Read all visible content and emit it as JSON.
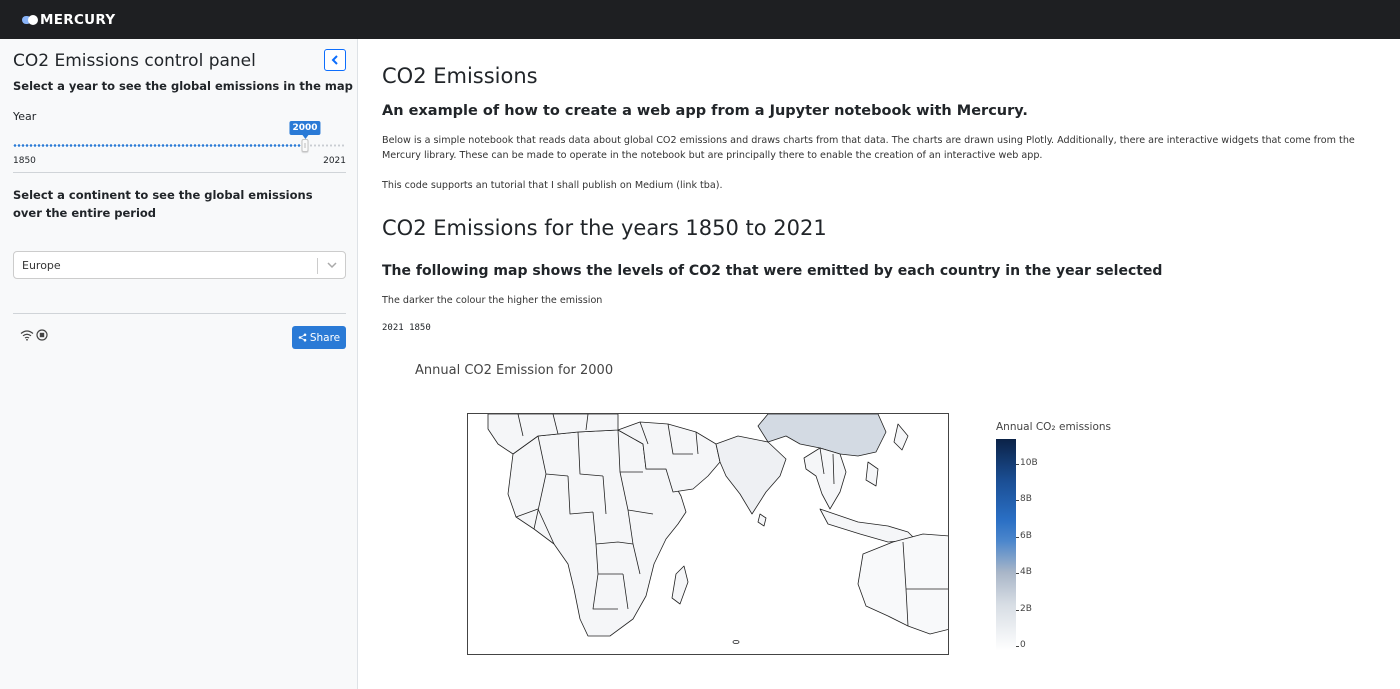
{
  "app": {
    "name": "MERCURY"
  },
  "sidebar": {
    "title": "CO2 Emissions control panel",
    "collapse_icon": "chevron-left-icon",
    "year_help": "Select a year to see the global emissions in the map",
    "year_label": "Year",
    "slider": {
      "min": 1850,
      "max": 2021,
      "value": 2000,
      "min_label": "1850",
      "max_label": "2021",
      "value_label": "2000",
      "accent": "#2a7ad6"
    },
    "continent_help": "Select a continent to see the global emissions over the entire period",
    "continent_select": {
      "value": "Europe"
    },
    "footer": {
      "wifi_icon": "wifi-icon",
      "stop_icon": "stop-icon",
      "share_label": "Share",
      "share_icon": "share-icon"
    }
  },
  "main": {
    "heading1": "CO2 Emissions",
    "subheading1": "An example of how to create a web app from a Jupyter notebook with Mercury.",
    "paragraph1": "Below is a simple notebook that reads data about global CO2 emissions and draws charts from that data. The charts are drawn using Plotly. Additionally, there are interactive widgets that come from the Mercury library. These can be made to operate in the notebook but are principally there to enable the creation of an interactive web app.",
    "paragraph2": "This code supports an tutorial that I shall publish on Medium (link tba).",
    "heading2": "CO2 Emissions for the years 1850 to 2021",
    "subheading2": "The following map shows the levels of CO2 that were emitted by each country in the year selected",
    "paragraph3": "The darker the colour the higher the emission",
    "code_output": "2021 1850",
    "chart": {
      "title": "Annual CO2 Emission for 2000",
      "colorbar_title": "Annual CO₂ emissions",
      "colorbar_ticks": [
        "0",
        "2B",
        "4B",
        "6B",
        "8B",
        "10B"
      ]
    }
  }
}
